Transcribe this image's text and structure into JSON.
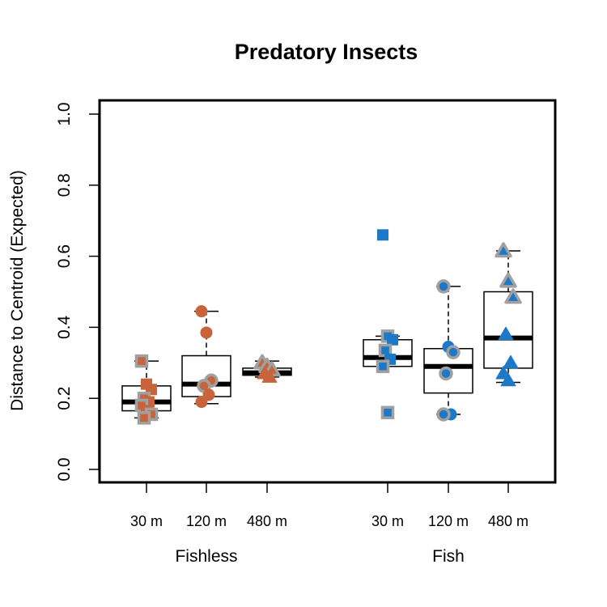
{
  "chart_data": {
    "type": "boxplot",
    "title": "Predatory Insects",
    "ylabel": "Distance to Centroid (Expected)",
    "xlabel": "",
    "ylim": [
      0.0,
      1.0
    ],
    "yticks": [
      "0.0",
      "0.2",
      "0.4",
      "0.6",
      "0.8",
      "1.0"
    ],
    "groups": [
      {
        "name": "Fishless",
        "color": "#C8643C",
        "categories": [
          {
            "label": "30 m",
            "shape": "square",
            "whisker_low": 0.145,
            "q1": 0.165,
            "median": 0.19,
            "q3": 0.235,
            "whisker_high": 0.305,
            "points": [
              {
                "y": 0.305,
                "grey": true
              },
              {
                "y": 0.24,
                "grey": false
              },
              {
                "y": 0.225,
                "grey": false
              },
              {
                "y": 0.2,
                "grey": true
              },
              {
                "y": 0.19,
                "grey": false
              },
              {
                "y": 0.18,
                "grey": true
              },
              {
                "y": 0.165,
                "grey": false
              },
              {
                "y": 0.155,
                "grey": true
              },
              {
                "y": 0.145,
                "grey": true
              }
            ]
          },
          {
            "label": "120 m",
            "shape": "circle",
            "whisker_low": 0.185,
            "q1": 0.205,
            "median": 0.24,
            "q3": 0.32,
            "whisker_high": 0.445,
            "points": [
              {
                "y": 0.445,
                "grey": false
              },
              {
                "y": 0.385,
                "grey": false
              },
              {
                "y": 0.25,
                "grey": true
              },
              {
                "y": 0.235,
                "grey": true
              },
              {
                "y": 0.21,
                "grey": false
              },
              {
                "y": 0.19,
                "grey": false
              }
            ]
          },
          {
            "label": "480 m",
            "shape": "triangle",
            "whisker_low": 0.26,
            "q1": 0.265,
            "median": 0.272,
            "q3": 0.285,
            "whisker_high": 0.305,
            "points": [
              {
                "y": 0.3,
                "grey": true
              },
              {
                "y": 0.29,
                "grey": true
              },
              {
                "y": 0.28,
                "grey": true
              },
              {
                "y": 0.27,
                "grey": false
              },
              {
                "y": 0.26,
                "grey": false
              }
            ]
          }
        ]
      },
      {
        "name": "Fish",
        "color": "#1E78C8",
        "categories": [
          {
            "label": "30 m",
            "shape": "square",
            "whisker_low": 0.29,
            "q1": 0.29,
            "median": 0.315,
            "q3": 0.365,
            "whisker_high": 0.375,
            "outliers": [
              0.66,
              0.16
            ],
            "points": [
              {
                "y": 0.66,
                "grey": false
              },
              {
                "y": 0.375,
                "grey": true
              },
              {
                "y": 0.365,
                "grey": false
              },
              {
                "y": 0.335,
                "grey": true
              },
              {
                "y": 0.31,
                "grey": false
              },
              {
                "y": 0.29,
                "grey": true
              },
              {
                "y": 0.16,
                "grey": true
              }
            ]
          },
          {
            "label": "120 m",
            "shape": "circle",
            "whisker_low": 0.155,
            "q1": 0.215,
            "median": 0.29,
            "q3": 0.34,
            "whisker_high": 0.515,
            "points": [
              {
                "y": 0.515,
                "grey": true
              },
              {
                "y": 0.345,
                "grey": false
              },
              {
                "y": 0.33,
                "grey": true
              },
              {
                "y": 0.27,
                "grey": true
              },
              {
                "y": 0.155,
                "grey": false
              },
              {
                "y": 0.155,
                "grey": true
              }
            ]
          },
          {
            "label": "480 m",
            "shape": "triangle",
            "whisker_low": 0.245,
            "q1": 0.285,
            "median": 0.37,
            "q3": 0.5,
            "whisker_high": 0.615,
            "points": [
              {
                "y": 0.615,
                "grey": true
              },
              {
                "y": 0.53,
                "grey": true
              },
              {
                "y": 0.485,
                "grey": true
              },
              {
                "y": 0.38,
                "grey": false
              },
              {
                "y": 0.3,
                "grey": false
              },
              {
                "y": 0.27,
                "grey": false
              },
              {
                "y": 0.25,
                "grey": false
              }
            ]
          }
        ]
      }
    ]
  }
}
